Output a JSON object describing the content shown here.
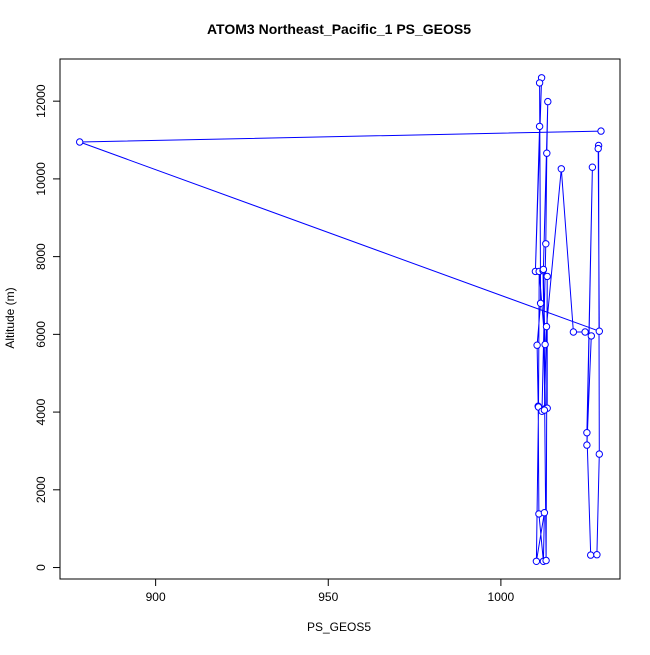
{
  "chart_data": {
    "type": "line",
    "title": "ATOM3 Northeast_Pacific_1 PS_GEOS5",
    "xlabel": "PS_GEOS5",
    "ylabel": "Altitude (m)",
    "xlim": [
      872.3,
      1034.5
    ],
    "ylim": [
      -295,
      13085
    ],
    "x_ticks": [
      900,
      950,
      1000
    ],
    "y_ticks": [
      0,
      2000,
      4000,
      6000,
      8000,
      10000,
      12000
    ],
    "grid": false,
    "legend": "none",
    "line_color": "#0000ff",
    "marker": "open-circle",
    "series": [
      {
        "x": [
          1011.2,
          1010.0,
          1011.8,
          1011.2,
          1011.5,
          1010.5,
          1010.8,
          1011.0,
          1012.3,
          1012.6,
          1010.3,
          1010.9,
          1011.1,
          1012.8,
          1012.2,
          1012.9,
          1011.9,
          1013.0,
          1013.3,
          1013.6,
          1012.3,
          1013.1,
          1013.4,
          1013.4,
          1012.6,
          1013.2,
          1017.5,
          1021.0,
          1024.4,
          1026.2,
          1024.9,
          1026.5,
          1024.9,
          1026.0,
          1027.8,
          1028.5,
          1028.3,
          1028.2,
          1028.5,
          878.0,
          1029.0
        ],
        "y": [
          11350,
          7620,
          12600,
          12470,
          6800,
          5720,
          4150,
          1380,
          160,
          1410,
          160,
          4130,
          7620,
          5740,
          7640,
          4090,
          4020,
          8330,
          10660,
          11990,
          7670,
          180,
          7490,
          4100,
          4050,
          6200,
          10260,
          6060,
          6060,
          5960,
          3150,
          10300,
          3470,
          320,
          330,
          2920,
          10860,
          10780,
          6080,
          10950,
          11230
        ]
      }
    ]
  }
}
